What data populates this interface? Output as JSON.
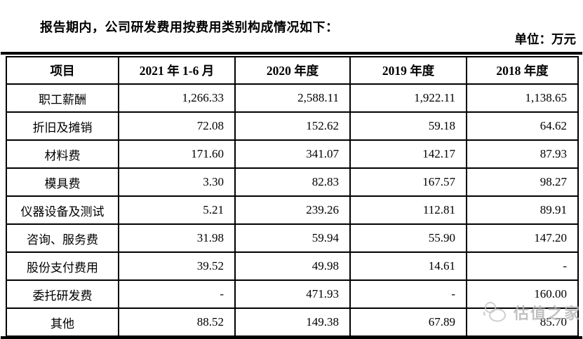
{
  "page": {
    "intro_text": "报告期内，公司研发费用按费用类别构成情况如下：",
    "unit_label": "单位：万元"
  },
  "table": {
    "columns": [
      "项目",
      "2021 年 1-6 月",
      "2020 年度",
      "2019 年度",
      "2018 年度"
    ],
    "rows": [
      {
        "item": "职工薪酬",
        "values": [
          "1,266.33",
          "2,588.11",
          "1,922.11",
          "1,138.65"
        ]
      },
      {
        "item": "折旧及摊销",
        "values": [
          "72.08",
          "152.62",
          "59.18",
          "64.62"
        ]
      },
      {
        "item": "材料费",
        "values": [
          "171.60",
          "341.07",
          "142.17",
          "87.93"
        ]
      },
      {
        "item": "模具费",
        "values": [
          "3.30",
          "82.83",
          "167.57",
          "98.27"
        ]
      },
      {
        "item": "仪器设备及测试",
        "values": [
          "5.21",
          "239.26",
          "112.81",
          "89.91"
        ]
      },
      {
        "item": "咨询、服务费",
        "values": [
          "31.98",
          "59.94",
          "55.90",
          "147.20"
        ]
      },
      {
        "item": "股份支付费用",
        "values": [
          "39.52",
          "49.98",
          "14.61",
          "-"
        ]
      },
      {
        "item": "委托研发费",
        "values": [
          "-",
          "471.93",
          "-",
          "160.00"
        ]
      },
      {
        "item": "其他",
        "values": [
          "88.52",
          "149.38",
          "67.89",
          "85.70"
        ]
      }
    ]
  },
  "watermark": {
    "text": "估值之家",
    "color": "#b4b4b4"
  }
}
